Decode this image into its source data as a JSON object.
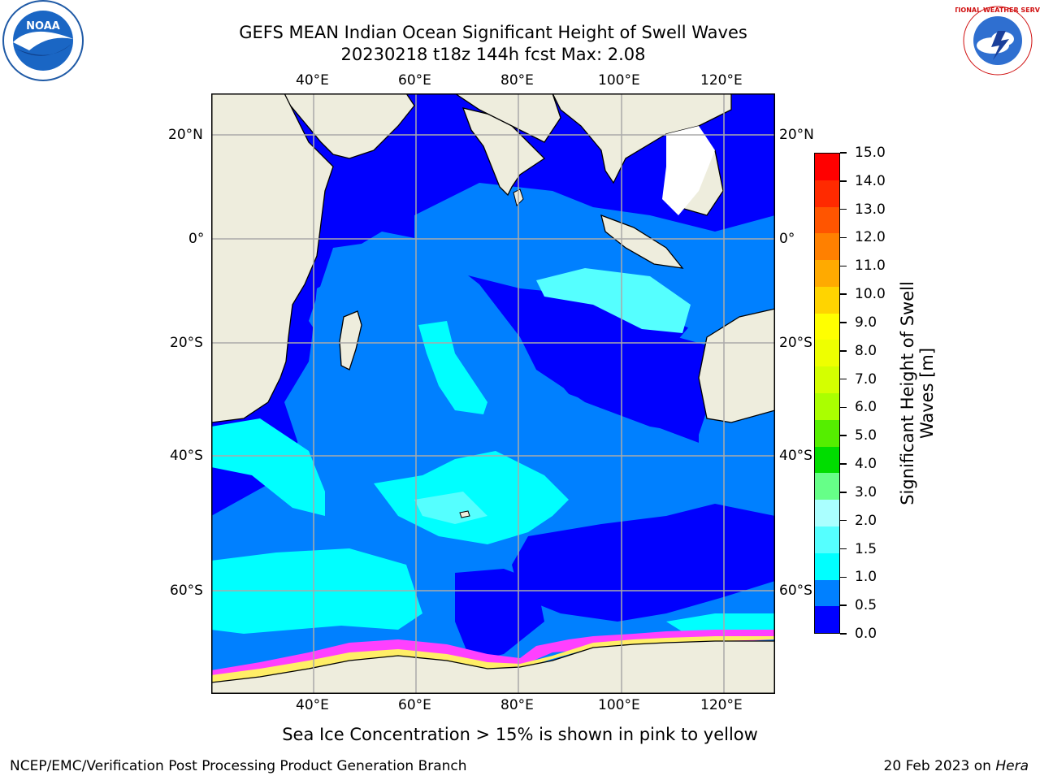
{
  "header": {
    "title_line1": "GEFS MEAN Indian Ocean Significant Height of Swell Waves",
    "title_line2": "20230218 t18z 144h fcst   Max: 2.08"
  },
  "logos": {
    "noaa_text": "NOAA",
    "nws_text": "NATIONAL WEATHER SERVICE"
  },
  "map": {
    "lon_labels": [
      "40°E",
      "60°E",
      "80°E",
      "100°E",
      "120°E"
    ],
    "lat_labels_left": [
      "20°N",
      "0°",
      "20°S",
      "40°S",
      "60°S"
    ],
    "lat_labels_right": [
      "20°N",
      "0°",
      "20°S",
      "40°S",
      "60°S"
    ],
    "land_color": "#eeeddd",
    "ocean_colors": {
      "deep": "#0000fe",
      "mid": "#0080ff",
      "light": "#00ffff",
      "pale": "#55ffff",
      "ice": "#ff40ff"
    }
  },
  "colorbar": {
    "label_line1": "Significant Height of Swell",
    "label_line2": "Waves [m]",
    "ticks": [
      "15.0",
      "14.0",
      "13.0",
      "12.0",
      "11.0",
      "10.0",
      "9.0",
      "8.0",
      "7.0",
      "6.0",
      "5.0",
      "4.0",
      "3.0",
      "2.0",
      "1.5",
      "1.0",
      "0.5",
      "0.0"
    ],
    "colors_top_to_bottom": [
      "#ff0000",
      "#ff2a00",
      "#ff5500",
      "#ff8000",
      "#ffaa00",
      "#ffd400",
      "#ffff00",
      "#eeff00",
      "#d4ff00",
      "#aaff00",
      "#55ee00",
      "#00dd00",
      "#66ff88",
      "#aaffff",
      "#55ffff",
      "#00ffff",
      "#0080ff",
      "#0000ff"
    ]
  },
  "annotation": "Sea Ice Concentration > 15% is shown in pink to yellow",
  "footer": {
    "left": "NCEP/EMC/Verification Post Processing Product Generation Branch",
    "right_prefix": "20 Feb 2023 on ",
    "right_italic": "Hera"
  }
}
